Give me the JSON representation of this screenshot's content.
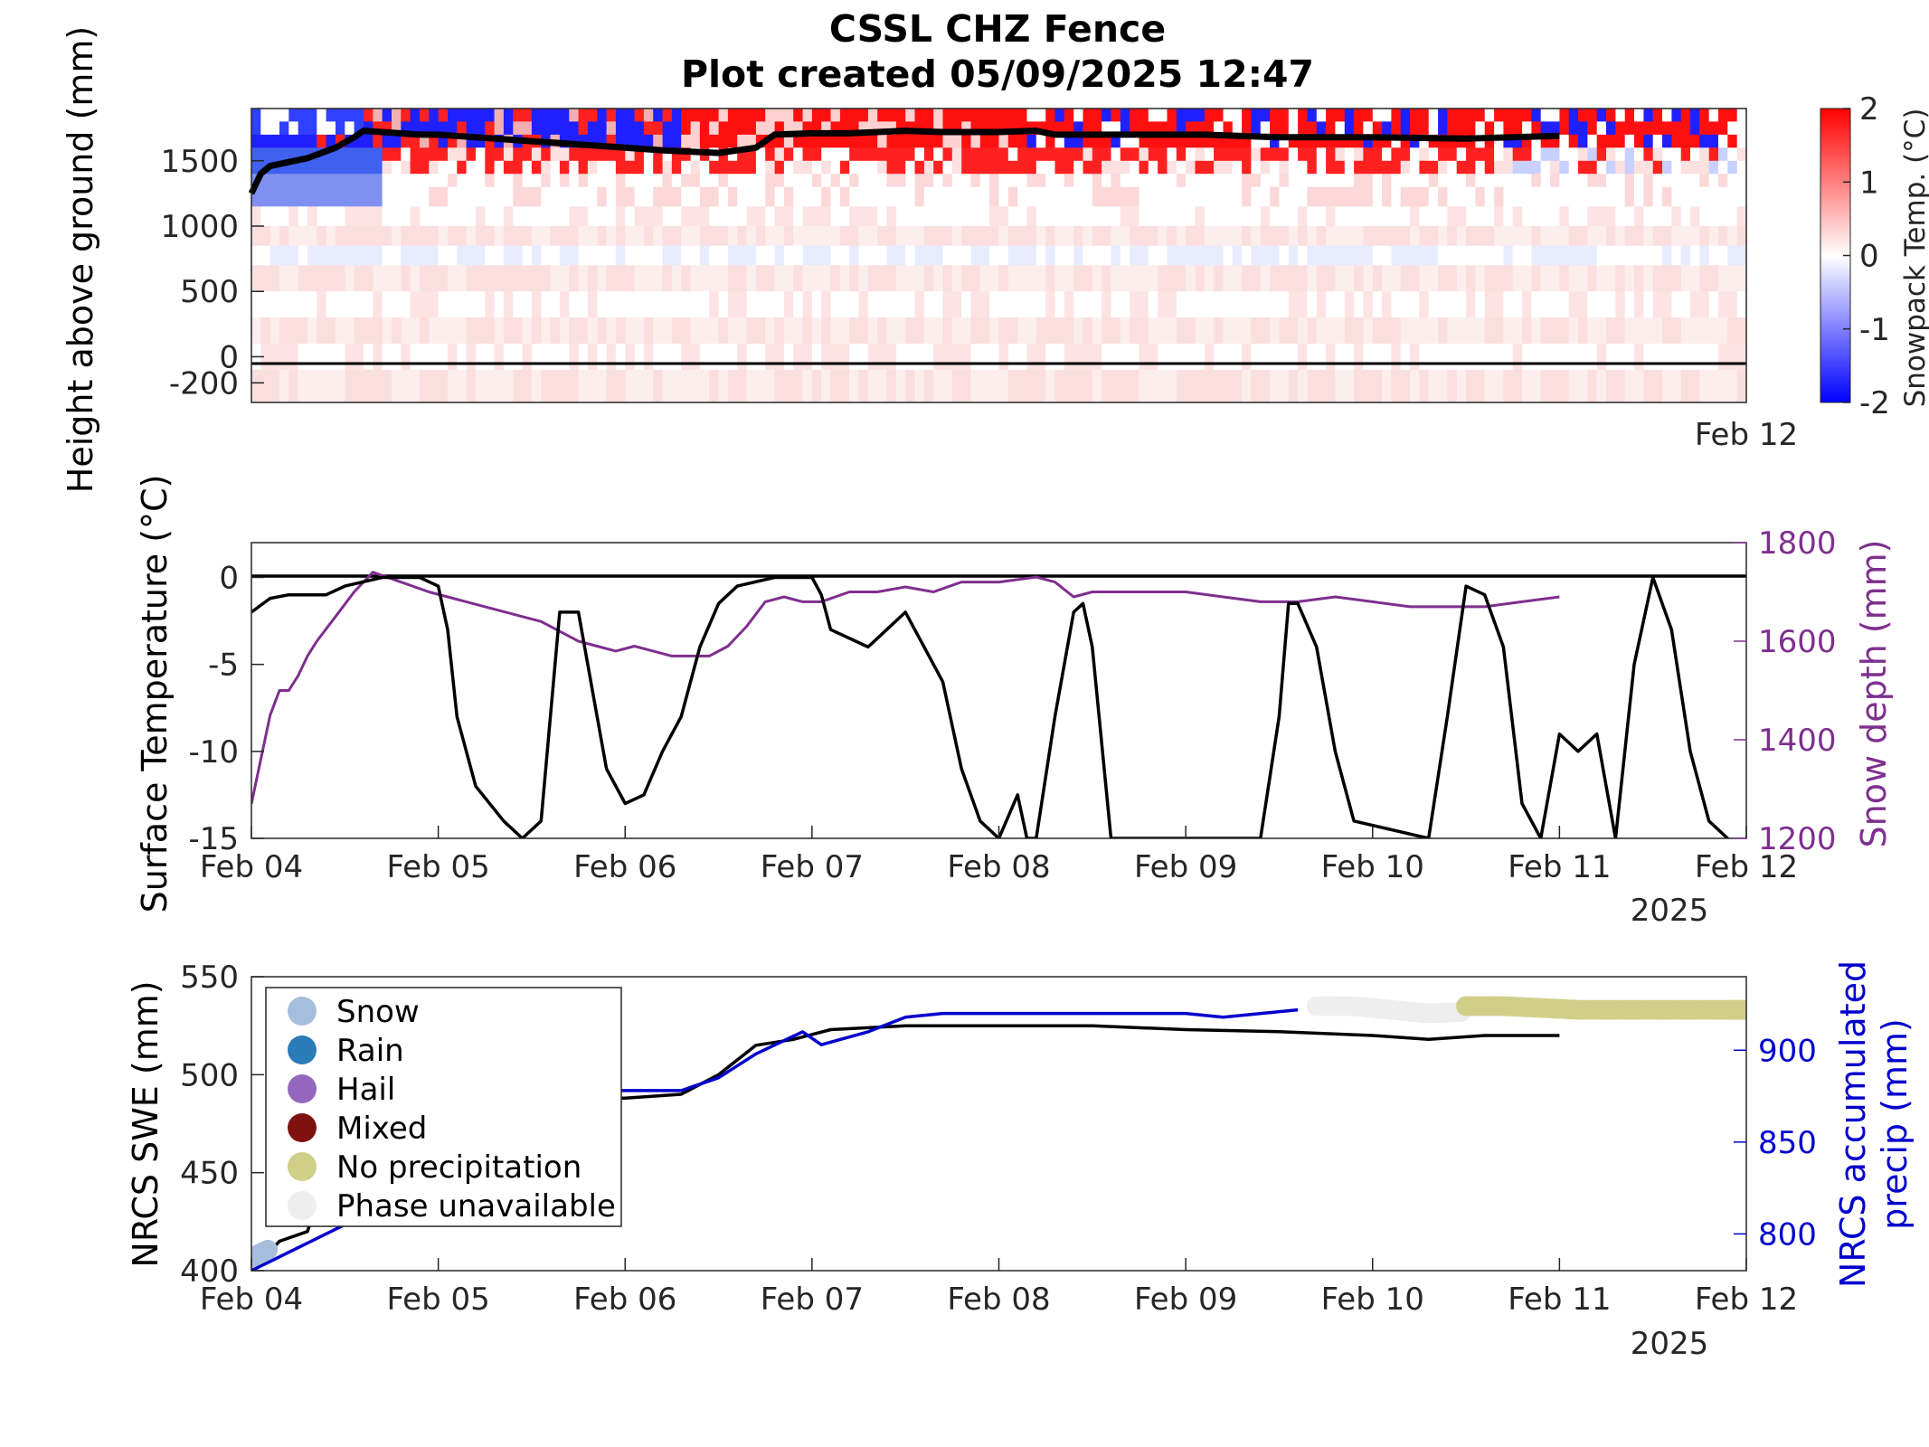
{
  "title_line1": "CSSL CHZ Fence",
  "title_line2": "Plot created 05/09/2025 12:47",
  "chart_data": [
    {
      "type": "heatmap",
      "ylabel": "Height above ground (mm)",
      "colorbar_label": "Snowpack Temp. (°C)",
      "colorbar_ticks": [
        "2",
        "1",
        "0",
        "-1",
        "-2"
      ],
      "colorbar_range": [
        -2,
        2
      ],
      "y_ticks": [
        "1500",
        "1000",
        "500",
        "0",
        "-200"
      ],
      "ylim": [
        -350,
        1900
      ],
      "x_end_label": "Feb 12",
      "colors": {
        "cold": "#0000ff",
        "neutral": "#ffffff",
        "warm": "#ff0000",
        "snow_depth_line": "#000000"
      },
      "snow_depth_line": {
        "x_days": [
          0,
          0.05,
          0.1,
          0.2,
          0.3,
          0.45,
          0.55,
          0.6,
          0.7,
          0.9,
          1.0,
          1.2,
          1.5,
          1.8,
          2.0,
          2.2,
          2.5,
          2.7,
          2.8,
          3.0,
          3.2,
          3.5,
          3.7,
          4.0,
          4.2,
          4.3,
          4.6,
          4.9,
          5.1,
          5.5,
          6.0,
          6.5,
          7.0
        ],
        "y_mm": [
          1250,
          1400,
          1460,
          1490,
          1520,
          1600,
          1680,
          1730,
          1720,
          1700,
          1700,
          1680,
          1650,
          1620,
          1600,
          1580,
          1560,
          1600,
          1700,
          1710,
          1710,
          1730,
          1720,
          1720,
          1730,
          1700,
          1700,
          1700,
          1700,
          1680,
          1680,
          1670,
          1690
        ]
      }
    },
    {
      "type": "line",
      "ylabel": "Surface Temperature (°C)",
      "y2label": "Snow depth (mm)",
      "ylim": [
        -15,
        2
      ],
      "y2lim": [
        1200,
        1800
      ],
      "y_ticks": [
        "0",
        "-5",
        "-10",
        "-15"
      ],
      "y2_ticks": [
        "1800",
        "1600",
        "1400",
        "1200"
      ],
      "x_tick_labels": [
        "Feb 04",
        "Feb 05",
        "Feb 06",
        "Feb 07",
        "Feb 08",
        "Feb 09",
        "Feb 10",
        "Feb 11",
        "Feb 12"
      ],
      "x_year_label": "2025",
      "colors": {
        "temperature": "#000000",
        "snow_depth": "#7e2f8e",
        "y2_axis": "#7e2f8e"
      },
      "series": [
        {
          "x_days": [
            0,
            0.1,
            0.2,
            0.4,
            0.5,
            0.7,
            0.9,
            1.0,
            1.05,
            1.1,
            1.2,
            1.35,
            1.45,
            1.55,
            1.6,
            1.65,
            1.75,
            1.8,
            1.9,
            2.0,
            2.1,
            2.2,
            2.3,
            2.4,
            2.5,
            2.6,
            2.8,
            3.0,
            3.05,
            3.1,
            3.3,
            3.4,
            3.5,
            3.55,
            3.6,
            3.7,
            3.8,
            3.9,
            4.0,
            4.1,
            4.15,
            4.2,
            4.3,
            4.4,
            4.45,
            4.5,
            4.6,
            4.7,
            4.8,
            5.0,
            5.4,
            5.5,
            5.55,
            5.6,
            5.7,
            5.8,
            5.9,
            6.3,
            6.4,
            6.5,
            6.6,
            6.7,
            6.8,
            6.9,
            7.0,
            7.1,
            7.2,
            7.3,
            7.4,
            7.5,
            7.6,
            7.7,
            7.8,
            7.9,
            8.0
          ],
          "y": [
            -2,
            -1.2,
            -1.0,
            -1.0,
            -0.5,
            0,
            0,
            -0.5,
            -3,
            -8,
            -12,
            -14,
            -15,
            -14,
            -8,
            -2,
            -2,
            -5,
            -11,
            -13,
            -12.5,
            -10,
            -8,
            -4,
            -1.5,
            -0.5,
            0,
            0,
            -1,
            -3,
            -4,
            -3,
            -2,
            -3,
            -4,
            -6,
            -11,
            -14,
            -15,
            -12.5,
            -15,
            -15,
            -8,
            -2,
            -1.5,
            -4,
            -15,
            -15,
            -15,
            -15,
            -15,
            -8,
            -1.5,
            -1.5,
            -4,
            -10,
            -14,
            -15,
            -8,
            -0.5,
            -1,
            -4,
            -13,
            -15,
            -9,
            -10,
            -9,
            -15,
            -5,
            0,
            -3,
            -10,
            -14,
            -15,
            -16
          ]
        },
        {
          "x_days": [
            0,
            0.1,
            0.15,
            0.2,
            0.25,
            0.3,
            0.35,
            0.45,
            0.55,
            0.65,
            0.8,
            0.95,
            1.05,
            1.15,
            1.25,
            1.35,
            1.45,
            1.55,
            1.65,
            1.75,
            1.85,
            1.95,
            2.05,
            2.15,
            2.25,
            2.35,
            2.45,
            2.55,
            2.65,
            2.75,
            2.85,
            2.95,
            3.05,
            3.2,
            3.35,
            3.5,
            3.65,
            3.8,
            4.0,
            4.2,
            4.3,
            4.4,
            4.5,
            4.6,
            4.8,
            5.0,
            5.2,
            5.4,
            5.6,
            5.8,
            6.0,
            6.2,
            6.4,
            6.6,
            6.8,
            7.0
          ],
          "y": [
            1270,
            1450,
            1500,
            1500,
            1530,
            1570,
            1600,
            1650,
            1700,
            1740,
            1720,
            1700,
            1690,
            1680,
            1670,
            1660,
            1650,
            1640,
            1620,
            1600,
            1590,
            1580,
            1590,
            1580,
            1570,
            1570,
            1570,
            1590,
            1630,
            1680,
            1690,
            1680,
            1680,
            1700,
            1700,
            1710,
            1700,
            1720,
            1720,
            1730,
            1720,
            1690,
            1700,
            1700,
            1700,
            1700,
            1690,
            1680,
            1680,
            1690,
            1680,
            1670,
            1670,
            1670,
            1680,
            1690
          ]
        }
      ]
    },
    {
      "type": "line",
      "ylabel": "NRCS SWE (mm)",
      "y2label": "NRCS accumulated precip (mm)",
      "ylim": [
        400,
        550
      ],
      "y2lim": [
        780,
        940
      ],
      "y_ticks": [
        "550",
        "500",
        "450",
        "400"
      ],
      "y2_ticks": [
        "900",
        "850",
        "800"
      ],
      "x_tick_labels": [
        "Feb 04",
        "Feb 05",
        "Feb 06",
        "Feb 07",
        "Feb 08",
        "Feb 09",
        "Feb 10",
        "Feb 11",
        "Feb 12"
      ],
      "x_year_label": "2025",
      "colors": {
        "swe": "#000000",
        "precip": "#0000cc",
        "y2_axis": "#0000cc"
      },
      "legend": [
        {
          "label": "Snow",
          "color": "#a6bddb"
        },
        {
          "label": "Rain",
          "color": "#2b7bb9"
        },
        {
          "label": "Hail",
          "color": "#9467bd"
        },
        {
          "label": "Mixed",
          "color": "#7f1111"
        },
        {
          "label": "No precipitation",
          "color": "#cfcf8a"
        },
        {
          "label": "Phase unavailable",
          "color": "#eeeeee"
        }
      ],
      "series": [
        {
          "x_days": [
            0,
            0.05,
            0.15,
            0.3,
            0.4,
            0.6,
            1.0,
            1.5,
            2.0,
            2.3,
            2.5,
            2.7,
            2.9,
            3.1,
            3.5,
            4.0,
            4.5,
            5.0,
            5.5,
            6.0,
            6.3,
            6.6,
            7.0
          ],
          "y": [
            410,
            405,
            415,
            420,
            450,
            470,
            480,
            488,
            488,
            490,
            500,
            515,
            518,
            523,
            525,
            525,
            525,
            523,
            522,
            520,
            518,
            520,
            520
          ]
        },
        {
          "x_days": [
            0,
            1.0,
            1.5,
            2.0,
            2.3,
            2.5,
            2.7,
            2.95,
            3.05,
            3.3,
            3.5,
            3.7,
            4.0,
            4.5,
            5.0,
            5.2,
            5.6
          ],
          "y": [
            780,
            830,
            878,
            878,
            878,
            885,
            898,
            910,
            903,
            910,
            918,
            920,
            920,
            920,
            920,
            918,
            922
          ]
        },
        {
          "name": "Phase unavailable",
          "x_days": [
            5.7,
            5.9,
            6.1,
            6.3,
            6.5
          ],
          "y": [
            924,
            924,
            922,
            920,
            921
          ]
        },
        {
          "name": "No precipitation",
          "x_days": [
            6.5,
            6.7,
            6.9,
            7.1,
            7.3,
            7.5,
            7.7,
            7.9,
            8.0
          ],
          "y": [
            924,
            924,
            923,
            922,
            922,
            922,
            922,
            922,
            922
          ]
        },
        {
          "name": "Snow",
          "x_days": [
            0,
            0.1
          ],
          "y": [
            787,
            792
          ]
        }
      ]
    }
  ]
}
